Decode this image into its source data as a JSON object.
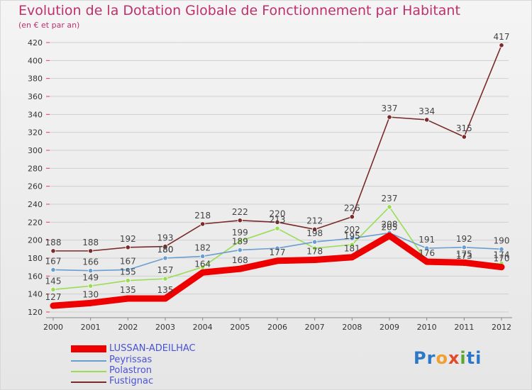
{
  "title": "Evolution de la Dotation Globale de Fonctionnement par Habitant",
  "subtitle": "(en € et par an)",
  "logo": {
    "text": "Proxiti",
    "parts": [
      "P",
      "r",
      "o",
      "x",
      "i",
      "ti"
    ]
  },
  "colors": {
    "LUSSAN-ADEILHAC": "#ee0000",
    "Peyrissas": "#6a9ed0",
    "Polastron": "#99dd55",
    "Fustignac": "#7a2a2a",
    "label_text": "#444444",
    "legend_text": "#4a52d6"
  },
  "chart_data": {
    "type": "line",
    "title": "Evolution de la Dotation Globale de Fonctionnement par Habitant",
    "subtitle": "(en € et par an)",
    "x": [
      "2000",
      "2001",
      "2002",
      "2003",
      "2004",
      "2005",
      "2006",
      "2007",
      "2008",
      "2009",
      "2010",
      "2011",
      "2012"
    ],
    "ylim": [
      120,
      420
    ],
    "yticks": [
      120,
      140,
      160,
      180,
      200,
      220,
      240,
      260,
      280,
      300,
      320,
      340,
      360,
      380,
      400,
      420
    ],
    "grid": true,
    "legend_position": "bottom-left",
    "series": [
      {
        "name": "LUSSAN-ADEILHAC",
        "values": [
          127,
          130,
          135,
          135,
          164,
          168,
          177,
          178,
          181,
          205,
          176,
          175,
          170
        ]
      },
      {
        "name": "Peyrissas",
        "values": [
          167,
          166,
          167,
          180,
          182,
          189,
          191,
          198,
          202,
          208,
          191,
          192,
          190
        ]
      },
      {
        "name": "Polastron",
        "values": [
          145,
          149,
          155,
          157,
          170,
          199,
          213,
          191,
          195,
          237,
          176,
          173,
          174
        ]
      },
      {
        "name": "Fustignac",
        "values": [
          188,
          188,
          192,
          193,
          218,
          222,
          220,
          212,
          226,
          337,
          334,
          315,
          417
        ]
      }
    ],
    "data_labels": [
      {
        "series": "Fustignac",
        "labels": [
          "188",
          "188",
          "192",
          "193",
          "218",
          "222",
          "220",
          "212",
          "226",
          "337",
          "334",
          "315",
          "417"
        ]
      },
      {
        "series": "Peyrissas",
        "labels": [
          "167",
          "166",
          "167",
          "180",
          "182",
          "",
          "",
          "",
          "202",
          "",
          "191",
          "192",
          "190"
        ]
      },
      {
        "series": "Polastron",
        "labels": [
          "145",
          "149",
          "",
          "157",
          "",
          "199",
          "",
          "",
          "",
          "237",
          "",
          "",
          ""
        ]
      },
      {
        "series": "LUSSAN-ADEILHAC",
        "labels": [
          "127",
          "130",
          "135",
          "135",
          "164",
          "168",
          "",
          "",
          "",
          "205",
          "",
          "",
          ""
        ]
      },
      {
        "series": "overlap",
        "labels": [
          "",
          "",
          "155",
          "180",
          "",
          "189",
          "213",
          "198",
          "195",
          "208",
          "176",
          "173",
          "170"
        ]
      },
      {
        "series": "overlap2",
        "labels": [
          "",
          "",
          "",
          "",
          "",
          "",
          "177",
          "178",
          "181",
          "",
          "",
          "175",
          "174"
        ]
      }
    ]
  },
  "legend": [
    {
      "name": "LUSSAN-ADEILHAC"
    },
    {
      "name": "Peyrissas"
    },
    {
      "name": "Polastron"
    },
    {
      "name": "Fustignac"
    }
  ]
}
